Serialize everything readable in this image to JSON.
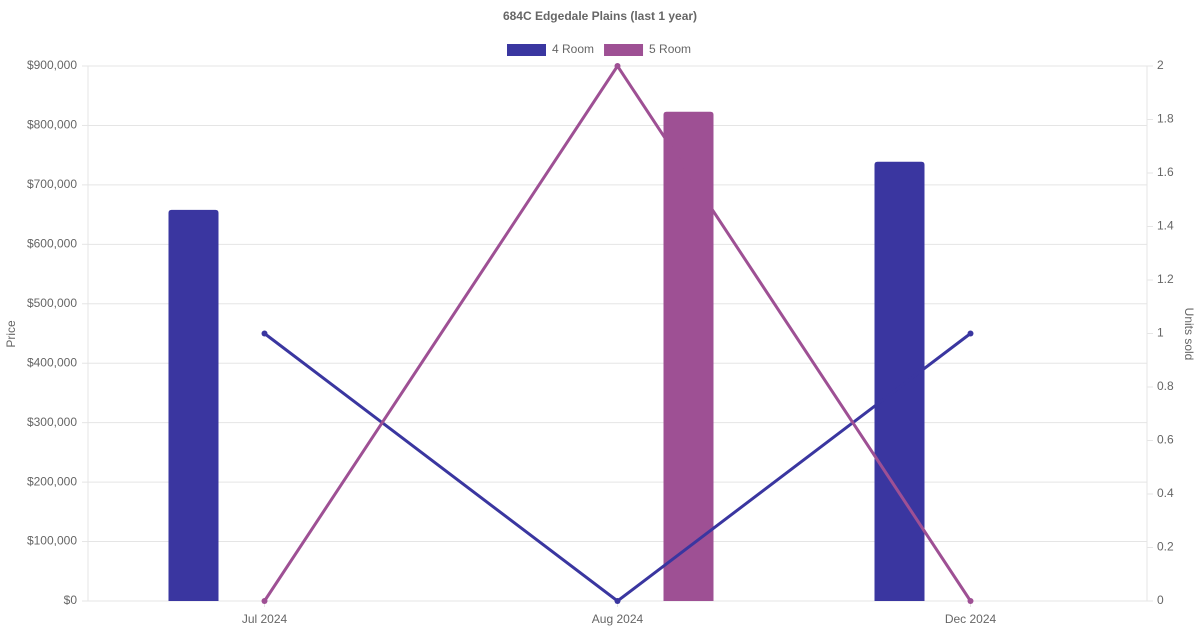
{
  "chart_data": {
    "type": "bar-line",
    "title": "684C Edgedale  Plains (last 1 year)",
    "y_label": "Price",
    "y2_label": "Units sold",
    "categories": [
      "Jul 2024",
      "Aug 2024",
      "Dec 2024"
    ],
    "series": [
      {
        "name": "4 Room",
        "color": "#3a36a0",
        "values": [
          658000,
          null,
          739000
        ],
        "units": [
          1,
          0,
          1
        ]
      },
      {
        "name": "5 Room",
        "color": "#9e5094",
        "values": [
          null,
          823000,
          null
        ],
        "units": [
          0,
          2,
          0
        ]
      }
    ],
    "ylim": [
      0,
      900000
    ],
    "yticks": [
      {
        "value": 0,
        "label": "$0"
      },
      {
        "value": 100000,
        "label": "$100,000"
      },
      {
        "value": 200000,
        "label": "$200,000"
      },
      {
        "value": 300000,
        "label": "$300,000"
      },
      {
        "value": 400000,
        "label": "$400,000"
      },
      {
        "value": 500000,
        "label": "$500,000"
      },
      {
        "value": 600000,
        "label": "$600,000"
      },
      {
        "value": 700000,
        "label": "$700,000"
      },
      {
        "value": 800000,
        "label": "$800,000"
      },
      {
        "value": 900000,
        "label": "$900,000"
      }
    ],
    "y2lim": [
      0,
      2
    ],
    "y2ticks": [
      0,
      0.2,
      0.4,
      0.6,
      0.8,
      1,
      1.2,
      1.4,
      1.6,
      1.8,
      2
    ],
    "grid": true
  }
}
